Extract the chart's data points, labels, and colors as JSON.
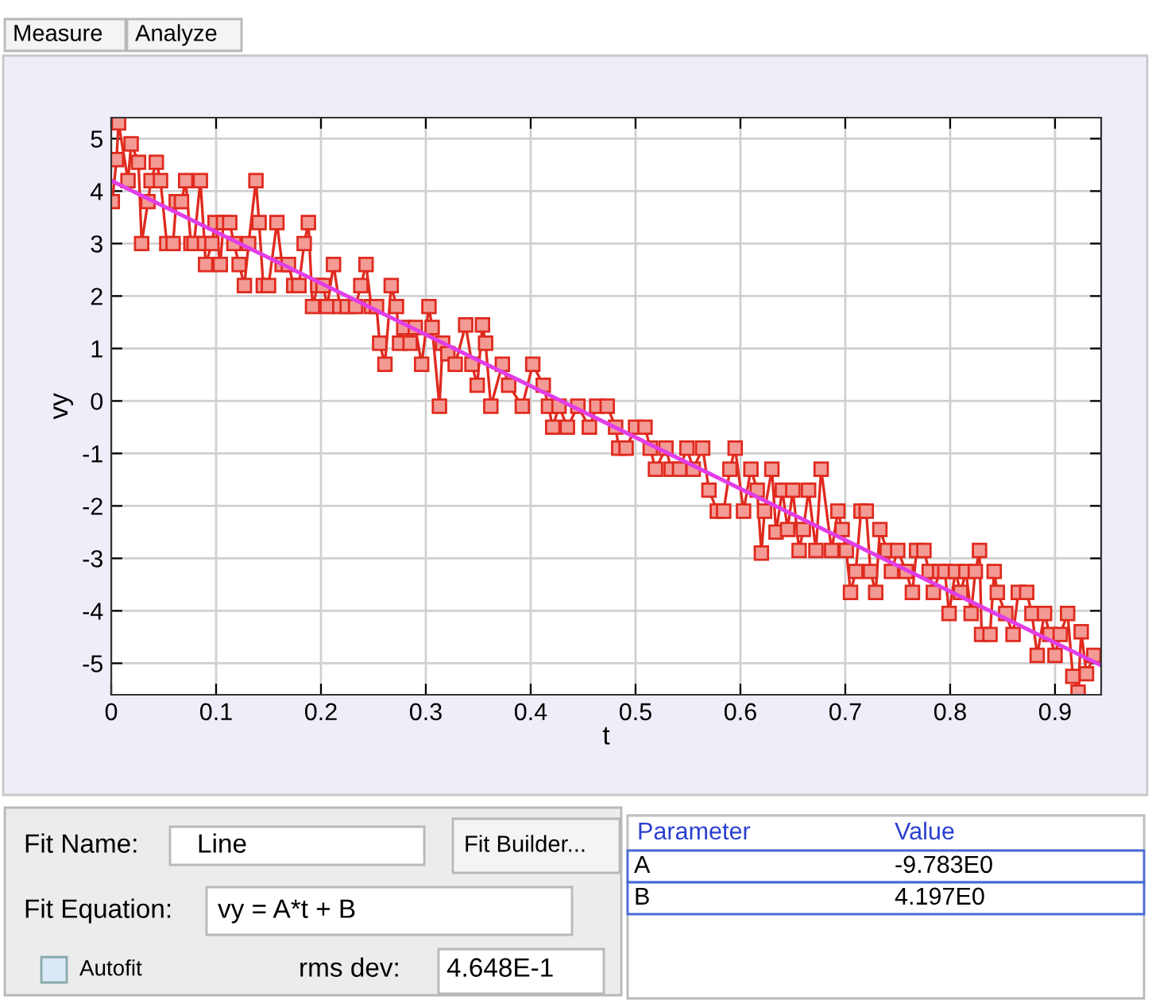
{
  "chart_data": {
    "type": "line",
    "xlabel": "t",
    "ylabel": "vy",
    "xlim": [
      0,
      0.944
    ],
    "ylim": [
      -5.6,
      5.4
    ],
    "xticks": [
      0,
      0.1,
      0.2,
      0.3,
      0.4,
      0.5,
      0.6,
      0.7,
      0.8,
      0.9
    ],
    "yticks": [
      -5,
      -4,
      -3,
      -2,
      -1,
      0,
      1,
      2,
      3,
      4,
      5
    ],
    "grid": true,
    "line_style": "solid",
    "series": [
      {
        "color": "#e02a1e",
        "marker": "square",
        "x": [
          0.001,
          0.005,
          0.007,
          0.016,
          0.019,
          0.026,
          0.029,
          0.035,
          0.038,
          0.043,
          0.047,
          0.053,
          0.059,
          0.062,
          0.067,
          0.071,
          0.076,
          0.079,
          0.085,
          0.089,
          0.09,
          0.096,
          0.099,
          0.104,
          0.107,
          0.113,
          0.117,
          0.122,
          0.127,
          0.131,
          0.138,
          0.141,
          0.145,
          0.15,
          0.158,
          0.163,
          0.169,
          0.174,
          0.179,
          0.184,
          0.188,
          0.192,
          0.197,
          0.202,
          0.206,
          0.212,
          0.218,
          0.225,
          0.233,
          0.238,
          0.243,
          0.248,
          0.253,
          0.256,
          0.261,
          0.267,
          0.272,
          0.275,
          0.279,
          0.285,
          0.29,
          0.296,
          0.303,
          0.306,
          0.313,
          0.316,
          0.321,
          0.328,
          0.338,
          0.344,
          0.349,
          0.354,
          0.357,
          0.362,
          0.373,
          0.379,
          0.392,
          0.402,
          0.412,
          0.417,
          0.421,
          0.427,
          0.435,
          0.445,
          0.456,
          0.463,
          0.473,
          0.481,
          0.484,
          0.491,
          0.5,
          0.509,
          0.514,
          0.519,
          0.529,
          0.534,
          0.542,
          0.549,
          0.555,
          0.564,
          0.57,
          0.578,
          0.584,
          0.59,
          0.595,
          0.603,
          0.61,
          0.616,
          0.62,
          0.623,
          0.63,
          0.634,
          0.64,
          0.645,
          0.65,
          0.656,
          0.66,
          0.665,
          0.672,
          0.677,
          0.687,
          0.693,
          0.697,
          0.701,
          0.705,
          0.71,
          0.715,
          0.72,
          0.724,
          0.729,
          0.733,
          0.74,
          0.744,
          0.75,
          0.758,
          0.764,
          0.768,
          0.775,
          0.78,
          0.784,
          0.79,
          0.795,
          0.799,
          0.805,
          0.81,
          0.815,
          0.82,
          0.824,
          0.828,
          0.83,
          0.838,
          0.842,
          0.845,
          0.853,
          0.86,
          0.865,
          0.873,
          0.878,
          0.883,
          0.89,
          0.895,
          0.9,
          0.905,
          0.912,
          0.917,
          0.922,
          0.925,
          0.93,
          0.937
        ],
        "values": [
          3.8,
          4.6,
          5.3,
          4.2,
          4.9,
          4.55,
          3.0,
          3.8,
          4.2,
          4.55,
          4.2,
          3.0,
          3.0,
          3.8,
          3.8,
          4.2,
          3.0,
          3.0,
          4.2,
          3.0,
          2.6,
          3.0,
          3.4,
          2.6,
          3.4,
          3.4,
          3.0,
          2.6,
          2.2,
          3.0,
          4.2,
          3.4,
          2.2,
          2.2,
          3.4,
          2.6,
          2.6,
          2.2,
          2.2,
          3.0,
          3.4,
          1.8,
          2.2,
          2.2,
          1.8,
          2.6,
          1.8,
          1.8,
          1.8,
          2.2,
          2.6,
          1.8,
          1.8,
          1.1,
          0.7,
          2.2,
          1.8,
          1.1,
          1.4,
          1.1,
          1.4,
          0.7,
          1.8,
          1.4,
          -0.1,
          1.1,
          0.9,
          0.7,
          1.45,
          0.7,
          0.3,
          1.45,
          1.1,
          -0.1,
          0.7,
          0.3,
          -0.1,
          0.7,
          0.3,
          -0.1,
          -0.5,
          -0.1,
          -0.5,
          -0.1,
          -0.5,
          -0.1,
          -0.1,
          -0.5,
          -0.9,
          -0.9,
          -0.5,
          -0.5,
          -0.9,
          -1.3,
          -0.9,
          -1.3,
          -1.3,
          -0.9,
          -1.3,
          -0.9,
          -1.7,
          -2.1,
          -2.1,
          -1.3,
          -0.9,
          -2.1,
          -1.3,
          -1.7,
          -2.9,
          -2.1,
          -1.3,
          -2.5,
          -1.7,
          -2.45,
          -1.7,
          -2.85,
          -2.45,
          -1.7,
          -2.85,
          -1.3,
          -2.85,
          -2.1,
          -2.45,
          -2.85,
          -3.65,
          -3.25,
          -2.1,
          -2.1,
          -3.25,
          -3.65,
          -2.45,
          -2.85,
          -3.25,
          -2.85,
          -3.25,
          -3.65,
          -2.85,
          -2.85,
          -3.25,
          -3.65,
          -3.25,
          -3.25,
          -4.05,
          -3.25,
          -3.65,
          -3.25,
          -4.05,
          -3.25,
          -2.85,
          -4.45,
          -4.45,
          -3.25,
          -3.65,
          -4.05,
          -4.45,
          -3.65,
          -3.65,
          -4.05,
          -4.85,
          -4.05,
          -4.45,
          -4.85,
          -4.45,
          -4.05,
          -5.25,
          -5.55,
          -4.4,
          -5.2,
          -4.85
        ]
      },
      {
        "color": "#e23ee6",
        "marker": "none",
        "x": [
          0,
          0.944
        ],
        "values": [
          4.2,
          -5.04
        ]
      }
    ],
    "annotations": [
      "Measure",
      "Analyze",
      "Fit Name:",
      "Line",
      "Fit Builder...",
      "Fit Equation:",
      "vy = A*t + B",
      "Autofit",
      "rms dev:",
      "4.648E-1",
      "Parameter",
      "Value",
      "A",
      "-9.783E0",
      "B",
      "4.197E0"
    ]
  }
}
